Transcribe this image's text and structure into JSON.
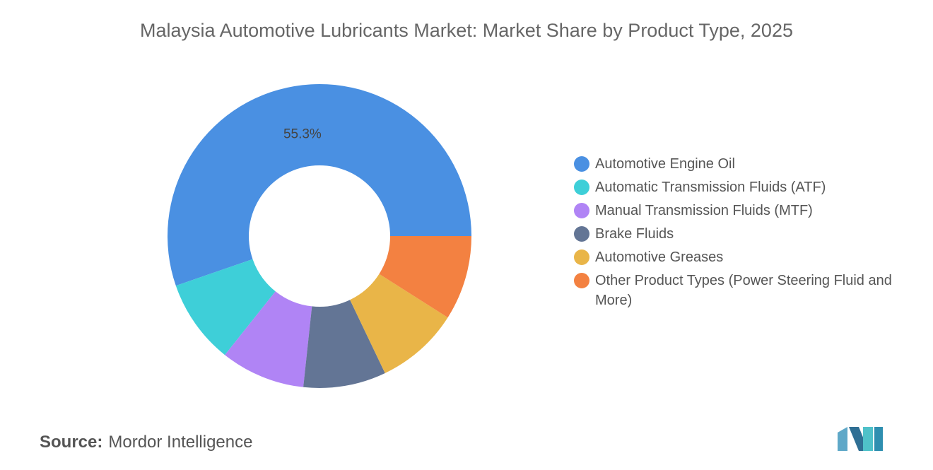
{
  "chart_data": {
    "type": "donut",
    "title": "Malaysia Automotive Lubricants Market: Market Share by Product Type, 2025",
    "categories": [
      "Automotive Engine Oil",
      "Automatic Transmission Fluids (ATF)",
      "Manual Transmission Fluids (MTF)",
      "Brake Fluids",
      "Automotive Greases",
      "Other Product Types (Power Steering Fluid and More)"
    ],
    "values": [
      55.3,
      9.0,
      9.0,
      8.8,
      8.9,
      9.0
    ],
    "value_labels": [
      "55.3%",
      null,
      null,
      null,
      null,
      null
    ],
    "colors": [
      "#4a90e2",
      "#3ecfd8",
      "#b084f5",
      "#637595",
      "#e9b548",
      "#f38141"
    ],
    "legend": "right"
  },
  "source": {
    "label": "Source:",
    "text": "Mordor Intelligence"
  }
}
